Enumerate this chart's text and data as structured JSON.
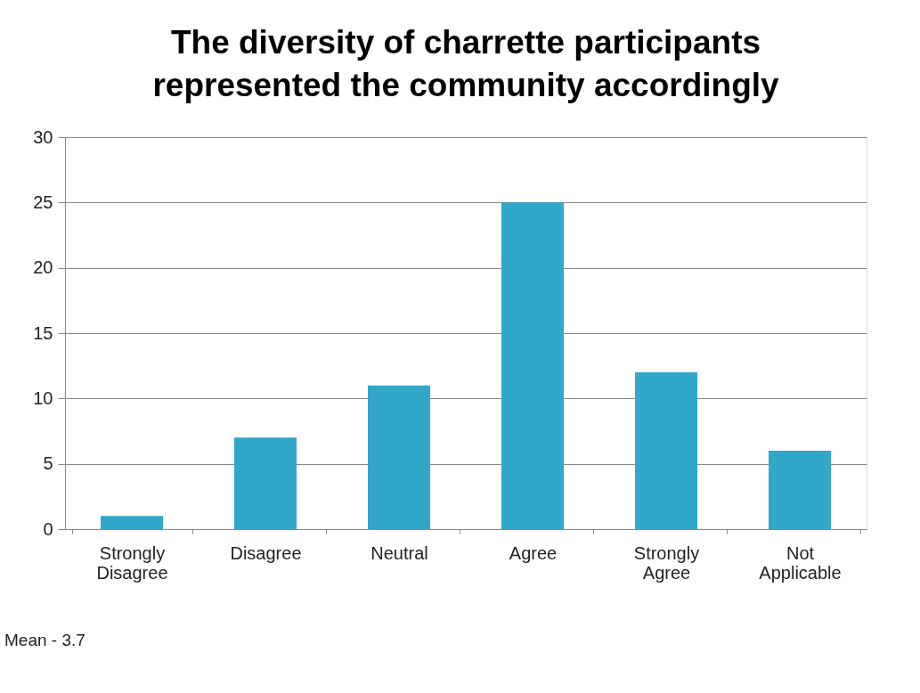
{
  "chart_data": {
    "type": "bar",
    "title": "The diversity of charrette participants represented the community accordingly",
    "categories": [
      "Strongly Disagree",
      "Disagree",
      "Neutral",
      "Agree",
      "Strongly Agree",
      "Not Applicable"
    ],
    "values": [
      1,
      7,
      11,
      25,
      12,
      6
    ],
    "color": "#31a7c9",
    "ylim": [
      0,
      30
    ],
    "yticks": [
      0,
      5,
      10,
      15,
      20,
      25,
      30
    ],
    "grid": "y",
    "annotations": [
      "Mean - 3.7"
    ]
  }
}
